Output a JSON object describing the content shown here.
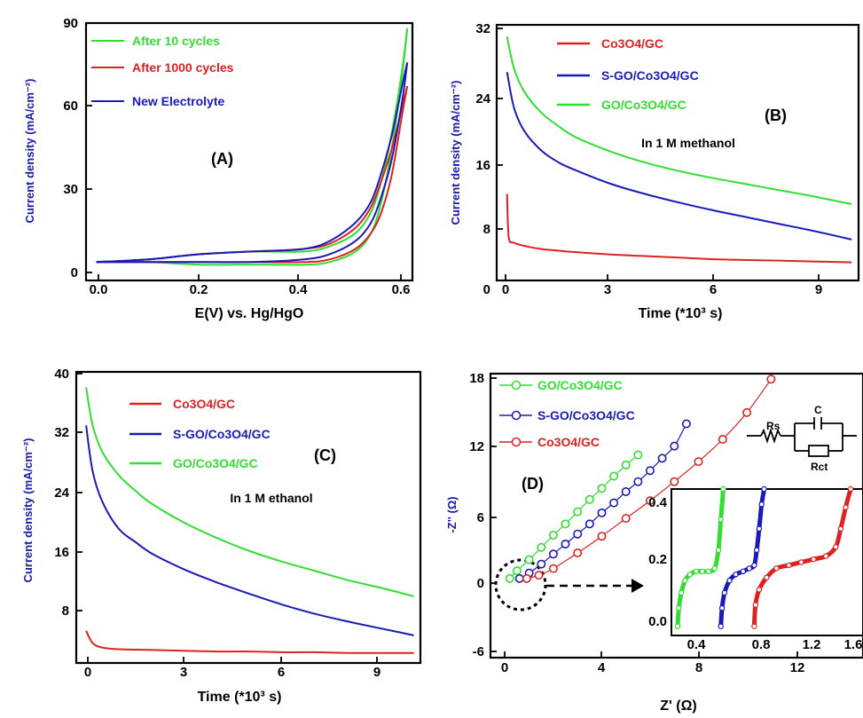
{
  "chart_data": [
    {
      "panel": "(A)",
      "type": "line",
      "xlabel": "E(V) vs. Hg/HgO",
      "ylabel": "Current density (mA/cm⁻²)",
      "xlim": [
        -0.02,
        0.61
      ],
      "ylim": [
        -8,
        90
      ],
      "xticks": [
        "0.0",
        "0.2",
        "0.4",
        "0.6"
      ],
      "yticks": [
        "0",
        "30",
        "60",
        "90"
      ],
      "legend_position": "top-left",
      "series": [
        {
          "name": "After 10 cycles",
          "color": "#33dd33",
          "x": [
            0.0,
            0.1,
            0.2,
            0.3,
            0.4,
            0.45,
            0.5,
            0.53,
            0.55,
            0.57,
            0.59,
            0.6
          ],
          "y": [
            -1,
            -1,
            -2,
            -2,
            -2,
            -1,
            3,
            10,
            22,
            42,
            70,
            88
          ],
          "return_y": [
            -1,
            0,
            2,
            3,
            3,
            5,
            10,
            18,
            30,
            48,
            72,
            88
          ]
        },
        {
          "name": "After 1000 cycles",
          "color": "#dd2222",
          "x": [
            0.0,
            0.1,
            0.2,
            0.3,
            0.4,
            0.45,
            0.5,
            0.53,
            0.55,
            0.57,
            0.59,
            0.6
          ],
          "y": [
            -1,
            -1,
            -1,
            -1,
            -1,
            0,
            4,
            10,
            18,
            32,
            55,
            66
          ],
          "return_y": [
            -1,
            0,
            2,
            3,
            4,
            6,
            12,
            20,
            30,
            42,
            58,
            66
          ]
        },
        {
          "name": "New Electrolyte",
          "color": "#1a1ab8",
          "x": [
            0.0,
            0.1,
            0.2,
            0.3,
            0.4,
            0.45,
            0.5,
            0.53,
            0.55,
            0.57,
            0.59,
            0.6
          ],
          "y": [
            -1,
            -1,
            -1,
            -1,
            0,
            2,
            7,
            14,
            24,
            38,
            60,
            75
          ],
          "return_y": [
            -1,
            0,
            2,
            3,
            4,
            7,
            14,
            22,
            33,
            47,
            66,
            75
          ]
        }
      ],
      "annotations": [
        "(A)"
      ]
    },
    {
      "panel": "(B)",
      "type": "line",
      "xlabel": "Time (*10³ s)",
      "ylabel": "Current density (mA/cm⁻²)",
      "xlim": [
        -0.3,
        10.2
      ],
      "ylim": [
        0,
        32.5
      ],
      "xticks": [
        "0",
        "3",
        "6",
        "9"
      ],
      "yticks": [
        "0",
        "8",
        "16",
        "24",
        "32"
      ],
      "legend_position": "top",
      "series": [
        {
          "name": "Co3O4/GC",
          "color": "#dd2222",
          "x": [
            0,
            0.05,
            0.2,
            0.5,
            1,
            2,
            3,
            4,
            5,
            6,
            7,
            8,
            9,
            10
          ],
          "y": [
            11,
            5.5,
            4.8,
            4.4,
            4.0,
            3.6,
            3.3,
            3.1,
            2.9,
            2.7,
            2.6,
            2.5,
            2.4,
            2.3
          ]
        },
        {
          "name": "S-GO/Co3O4/GC",
          "color": "#1a1ab8",
          "x": [
            0,
            0.2,
            0.5,
            1,
            1.5,
            2,
            3,
            4,
            5,
            6,
            7,
            8,
            9,
            10
          ],
          "y": [
            26.5,
            22,
            19,
            16.5,
            15,
            14,
            12.3,
            11,
            9.9,
            8.9,
            8,
            7.1,
            6.2,
            5.2
          ]
        },
        {
          "name": "GO/Co3O4/GC",
          "color": "#33dd33",
          "x": [
            0,
            0.2,
            0.5,
            1,
            1.5,
            2,
            3,
            4,
            5,
            6,
            7,
            8,
            9,
            10
          ],
          "y": [
            31,
            27,
            24,
            21.3,
            19.6,
            18.2,
            16.4,
            15,
            13.9,
            13,
            12.2,
            11.4,
            10.6,
            9.7
          ]
        }
      ],
      "annotations": [
        "(B)",
        "In 1 M methanol"
      ]
    },
    {
      "panel": "(C)",
      "type": "line",
      "xlabel": "Time (*10³ s)",
      "ylabel": "Current density (mA/cm⁻²)",
      "xlim": [
        -0.3,
        10.2
      ],
      "ylim": [
        2,
        40
      ],
      "xticks": [
        "0",
        "3",
        "6",
        "9"
      ],
      "yticks": [
        "8",
        "16",
        "24",
        "32",
        "40"
      ],
      "legend_position": "top",
      "series": [
        {
          "name": "Co3O4/GC",
          "color": "#dd2222",
          "x": [
            0,
            0.2,
            0.5,
            1,
            2,
            3,
            4,
            5,
            6,
            7,
            8,
            9,
            10
          ],
          "y": [
            6.2,
            4.6,
            4.0,
            3.8,
            3.7,
            3.6,
            3.5,
            3.5,
            3.4,
            3.4,
            3.3,
            3.3,
            3.3
          ]
        },
        {
          "name": "S-GO/Co3O4/GC",
          "color": "#1a1ab8",
          "x": [
            0,
            0.2,
            0.5,
            1,
            1.5,
            2,
            3,
            4,
            5,
            6,
            7,
            8,
            9,
            10
          ],
          "y": [
            33,
            27,
            23,
            19.5,
            17.8,
            16.3,
            14.2,
            12.5,
            11,
            9.6,
            8.4,
            7.4,
            6.5,
            5.6
          ]
        },
        {
          "name": "GO/Co3O4/GC",
          "color": "#33dd33",
          "x": [
            0,
            0.2,
            0.5,
            1,
            1.5,
            2,
            3,
            4,
            5,
            6,
            7,
            8,
            9,
            10
          ],
          "y": [
            38,
            33,
            29.5,
            26.5,
            24.5,
            22.8,
            20.3,
            18.3,
            16.6,
            15.2,
            14,
            12.8,
            11.8,
            10.7
          ]
        }
      ],
      "annotations": [
        "(C)",
        "In 1 M ethanol"
      ]
    },
    {
      "panel": "(D)",
      "type": "scatter",
      "xlabel": "Z' (Ω)",
      "ylabel": "-Z'' (Ω)",
      "xlim": [
        -0.6,
        14.8
      ],
      "ylim": [
        -7,
        18.5
      ],
      "xticks": [
        "0",
        "4",
        "8",
        "12"
      ],
      "yticks": [
        "-6",
        "0",
        "6",
        "12",
        "18"
      ],
      "legend_position": "top-left",
      "series": [
        {
          "name": "GO/Co3O4/GC",
          "color": "#33dd33",
          "x": [
            0.2,
            0.5,
            1.0,
            1.5,
            2.0,
            2.5,
            3.0,
            3.5,
            4.0,
            4.5,
            5.0,
            5.5
          ],
          "y": [
            0.1,
            0.8,
            1.8,
            2.9,
            4.0,
            5.0,
            6.1,
            7.2,
            8.2,
            9.3,
            10.3,
            11.2
          ]
        },
        {
          "name": "S-GO/Co3O4/GC",
          "color": "#1a1ab8",
          "x": [
            0.6,
            1.0,
            1.5,
            2.0,
            2.5,
            3.0,
            3.5,
            4.0,
            4.5,
            5.0,
            5.5,
            6.0,
            6.5,
            7.0,
            7.5
          ],
          "y": [
            0.1,
            0.6,
            1.4,
            2.3,
            3.2,
            4.1,
            5.0,
            6.0,
            6.9,
            7.9,
            8.8,
            9.8,
            10.9,
            12.0,
            14.0
          ]
        },
        {
          "name": "Co3O4/GC",
          "color": "#dd2222",
          "x": [
            0.9,
            1.4,
            2.0,
            3.0,
            4.0,
            5.0,
            6.0,
            7.0,
            8.0,
            9.0,
            10.0,
            11.0
          ],
          "y": [
            0.1,
            0.4,
            1.0,
            2.4,
            3.9,
            5.5,
            7.1,
            8.8,
            10.6,
            12.6,
            15.0,
            18.0
          ]
        }
      ],
      "inset": {
        "xlim": [
          0.05,
          1.6
        ],
        "ylim": [
          -0.03,
          0.45
        ],
        "xticks": [
          "0.4",
          "0.8",
          "1.2",
          "1.6"
        ],
        "yticks": [
          "0.0",
          "0.2",
          "0.4"
        ],
        "series": [
          {
            "name": "GO/Co3O4/GC",
            "color": "#33dd33",
            "x": [
              0.1,
              0.11,
              0.13,
              0.16,
              0.2,
              0.25,
              0.3,
              0.35,
              0.4,
              0.43,
              0.45,
              0.47
            ],
            "y": [
              0.0,
              0.06,
              0.11,
              0.15,
              0.17,
              0.18,
              0.18,
              0.18,
              0.19,
              0.25,
              0.35,
              0.45
            ]
          },
          {
            "name": "S-GO/Co3O4/GC",
            "color": "#1a1ab8",
            "x": [
              0.45,
              0.46,
              0.48,
              0.52,
              0.57,
              0.63,
              0.68,
              0.72,
              0.74,
              0.76,
              0.78,
              0.8
            ],
            "y": [
              0.0,
              0.06,
              0.11,
              0.15,
              0.17,
              0.18,
              0.19,
              0.2,
              0.25,
              0.32,
              0.4,
              0.45
            ]
          },
          {
            "name": "Co3O4/GC",
            "color": "#dd2222",
            "x": [
              0.72,
              0.73,
              0.76,
              0.82,
              0.9,
              1.0,
              1.1,
              1.2,
              1.3,
              1.38,
              1.42,
              1.46,
              1.5
            ],
            "y": [
              0.0,
              0.07,
              0.12,
              0.16,
              0.19,
              0.2,
              0.21,
              0.22,
              0.23,
              0.26,
              0.32,
              0.39,
              0.45
            ]
          }
        ]
      },
      "annotations": [
        "(D)"
      ],
      "circuit_labels": [
        "Rs",
        "C",
        "Rct"
      ]
    }
  ]
}
